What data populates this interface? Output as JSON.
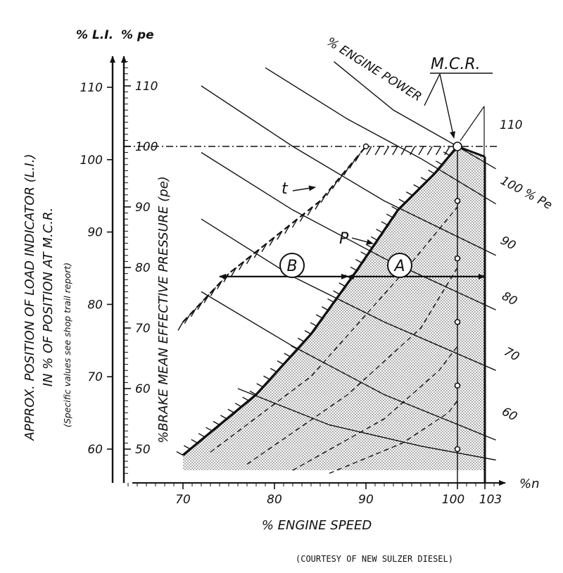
{
  "chart_data": {
    "type": "line",
    "xlabel": "% ENGINE SPEED",
    "x_unit": "%n",
    "x_ticks": [
      70,
      80,
      90,
      100,
      103
    ],
    "y_axes": [
      {
        "label": "% L.I.",
        "ticks": [
          60,
          70,
          80,
          90,
          100,
          110
        ]
      },
      {
        "label": "% pe",
        "ticks": [
          50,
          60,
          70,
          80,
          90,
          100,
          110
        ]
      }
    ],
    "ylabel_left_line1": "APPROX. POSITION OF LOAD INDICATOR (L.I.)",
    "ylabel_left_line2": "IN % OF POSITION AT M.C.R.",
    "ylabel_left_note": "(Specific values see shop trail report)",
    "ylabel_right": "%BRAKE MEAN EFFECTIVE PRESSURE (pe)",
    "xlim": [
      64,
      106
    ],
    "ylim_pe": [
      44,
      117
    ],
    "curve_labels": {
      "power": "% ENGINE POWER",
      "mcr": "M.C.R."
    },
    "pe_line_labels": [
      "110",
      "100 % Pe",
      "90",
      "80",
      "70",
      "60"
    ],
    "region_labels": {
      "a": "A",
      "b": "B"
    },
    "line_labels": {
      "t": "t",
      "p": "P"
    },
    "limit_line_p": [
      [
        70,
        49
      ],
      [
        78,
        59
      ],
      [
        84,
        69
      ],
      [
        89,
        79.5
      ],
      [
        93.5,
        89.5
      ],
      [
        97.5,
        95.5
      ],
      [
        100,
        100
      ]
    ],
    "limit_line_t": [
      [
        70,
        71
      ],
      [
        75,
        79
      ],
      [
        80,
        85
      ],
      [
        85,
        91
      ],
      [
        90,
        100
      ]
    ],
    "mcr_point": {
      "speed": 100,
      "pe": 100
    },
    "right_limit_speed": 103,
    "operating_points_at_100": [
      100,
      91,
      81.5,
      71,
      60.5,
      50
    ],
    "arrow_range_b": [
      74,
      88
    ],
    "arrow_range_a": [
      88,
      103
    ],
    "arrow_level_pe": 78.5
  },
  "courtesy": "(COURTESY OF NEW SULZER DIESEL)"
}
